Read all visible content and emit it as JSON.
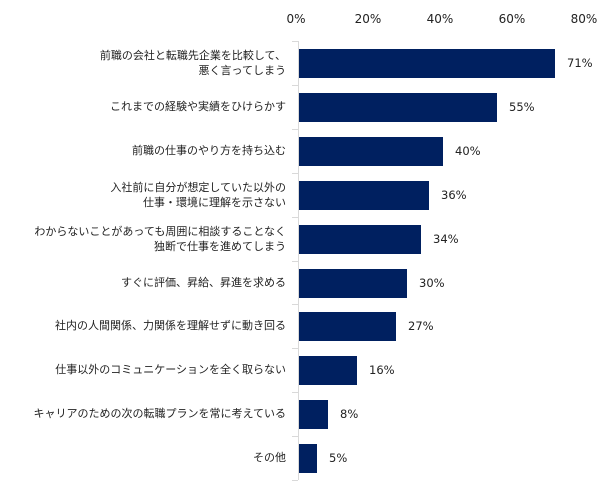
{
  "chart_data": {
    "type": "bar",
    "orientation": "horizontal",
    "title": "",
    "xlabel": "",
    "ylabel": "",
    "xlim": [
      0,
      80
    ],
    "x_ticks": [
      "0%",
      "20%",
      "40%",
      "60%",
      "80%"
    ],
    "grid": false,
    "legend": null,
    "bar_color": "#002060",
    "categories": [
      "前職の会社と転職先企業を比較して、\n悪く言ってしまう",
      "これまでの経験や実績をひけらかす",
      "前職の仕事のやり方を持ち込む",
      "入社前に自分が想定していた以外の\n仕事・環境に理解を示さない",
      "わからないことがあっても周囲に相談することなく\n独断で仕事を進めてしまう",
      "すぐに評価、昇給、昇進を求める",
      "社内の人間関係、力関係を理解せずに動き回る",
      "仕事以外のコミュニケーションを全く取らない",
      "キャリアのための次の転職プランを常に考えている",
      "その他"
    ],
    "values": [
      71,
      55,
      40,
      36,
      34,
      30,
      27,
      16,
      8,
      5
    ],
    "value_labels": [
      "71%",
      "55%",
      "40%",
      "36%",
      "34%",
      "30%",
      "27%",
      "16%",
      "8%",
      "5%"
    ]
  },
  "axis": {
    "ticks": [
      {
        "label": "0%",
        "x": 296
      },
      {
        "label": "20%",
        "x": 368
      },
      {
        "label": "40%",
        "x": 440
      },
      {
        "label": "60%",
        "x": 512
      },
      {
        "label": "80%",
        "x": 584
      }
    ]
  },
  "rows": [
    {
      "line1": "前職の会社と転職先企業を比較して、",
      "line2": "悪く言ってしまう",
      "value": 71,
      "label": "71%"
    },
    {
      "line1": "これまでの経験や実績をひけらかす",
      "line2": "",
      "value": 55,
      "label": "55%"
    },
    {
      "line1": "前職の仕事のやり方を持ち込む",
      "line2": "",
      "value": 40,
      "label": "40%"
    },
    {
      "line1": "入社前に自分が想定していた以外の",
      "line2": "仕事・環境に理解を示さない",
      "value": 36,
      "label": "36%"
    },
    {
      "line1": "わからないことがあっても周囲に相談することなく",
      "line2": "独断で仕事を進めてしまう",
      "value": 34,
      "label": "34%"
    },
    {
      "line1": "すぐに評価、昇給、昇進を求める",
      "line2": "",
      "value": 30,
      "label": "30%"
    },
    {
      "line1": "社内の人間関係、力関係を理解せずに動き回る",
      "line2": "",
      "value": 27,
      "label": "27%"
    },
    {
      "line1": "仕事以外のコミュニケーションを全く取らない",
      "line2": "",
      "value": 16,
      "label": "16%"
    },
    {
      "line1": "キャリアのための次の転職プランを常に考えている",
      "line2": "",
      "value": 8,
      "label": "8%"
    },
    {
      "line1": "その他",
      "line2": "",
      "value": 5,
      "label": "5%"
    }
  ],
  "colors": {
    "bar": "#002060",
    "axis": "#d9d9d9"
  }
}
